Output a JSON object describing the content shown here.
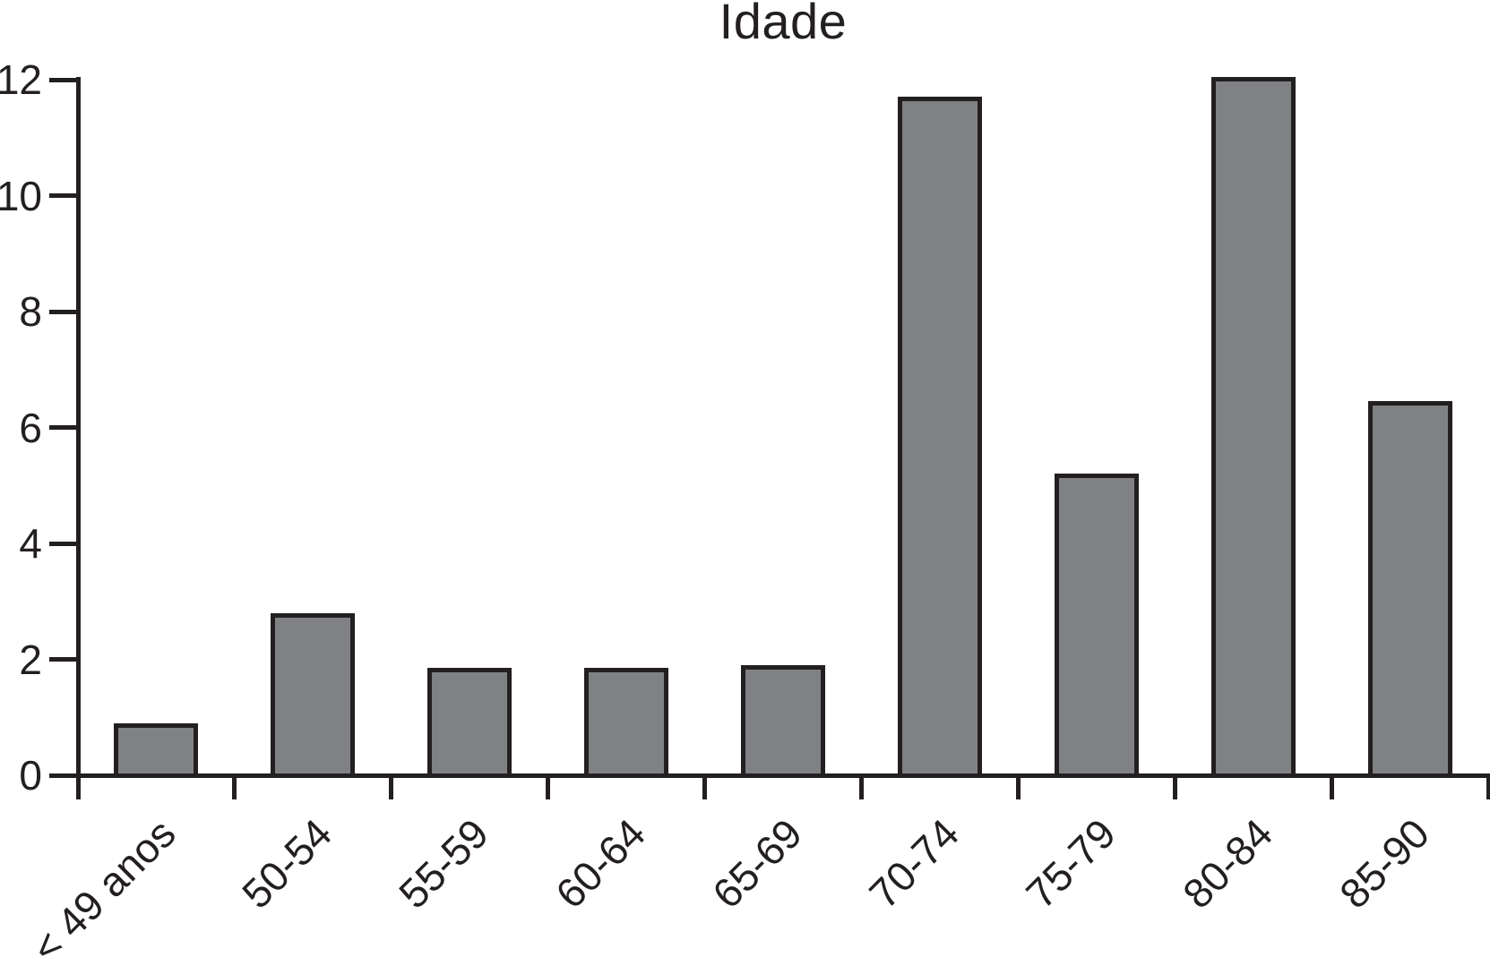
{
  "chart_data": {
    "type": "bar",
    "title": "Idade",
    "categories": [
      "< 49 anos",
      "50-54",
      "55-59",
      "60-64",
      "65-69",
      "70-74",
      "75-79",
      "80-84",
      "85-90"
    ],
    "values": [
      0.9,
      2.8,
      1.85,
      1.85,
      1.9,
      11.7,
      5.2,
      12.05,
      6.45
    ],
    "xlabel": "",
    "ylabel": "",
    "ylim": [
      0,
      12
    ],
    "yticks": [
      0,
      2,
      4,
      6,
      8,
      10,
      12
    ],
    "grid": false,
    "legend": null,
    "x_label_rotation_deg": -45,
    "tick_direction": "out",
    "colors": {
      "bar_fill": "#808184",
      "bar_border": "#231f20",
      "axis": "#231f20",
      "text": "#231f20",
      "background": "#ffffff"
    }
  }
}
